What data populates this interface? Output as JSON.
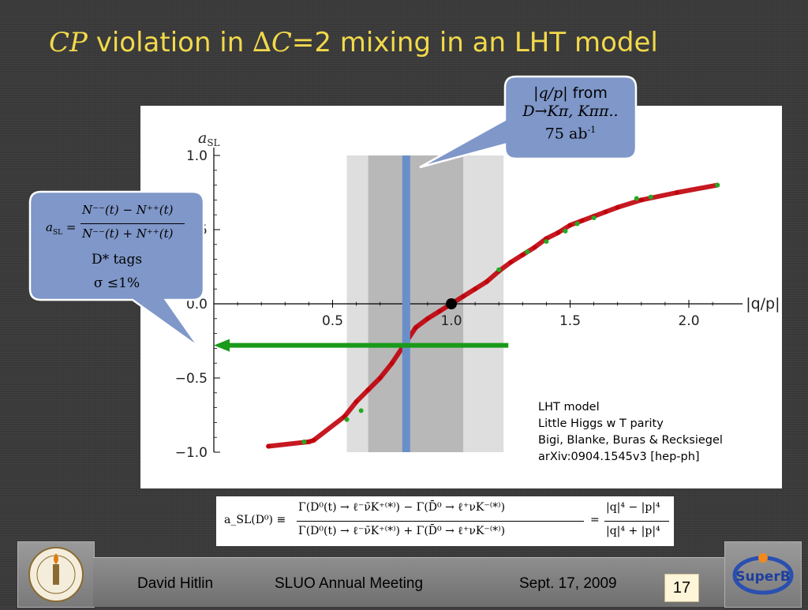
{
  "slide": {
    "title_cp": "CP",
    "title_mid": " violation in ",
    "title_delta": "∆C",
    "title_end": "=2 mixing in an LHT model",
    "page_number": "17"
  },
  "callouts": {
    "qp": {
      "line1_var": "|q/p|",
      "line1_text": " from",
      "line2": "D→Kπ, Kππ..",
      "line3_base": "75 ab",
      "line3_sup": "-1"
    },
    "asl": {
      "lhs": "a",
      "lhs_sub": "SL",
      "lhs_eq": " =",
      "numerator": "N⁻⁻(t) − N⁺⁺(t)",
      "denominator": "N⁻⁻(t) + N⁺⁺(t)",
      "tags": "D* tags",
      "sigma": "σ ≤1%"
    }
  },
  "credit": {
    "line1": "LHT model",
    "line2": "Little Higgs w T parity",
    "line3": "Bigi, Blanke, Buras & Recksiegel",
    "line4": "arXiv:0904.1545v3 [hep-ph]"
  },
  "formula": {
    "lhs": "a_SL(D⁰) ≡",
    "numerator": "Γ(D⁰(t) → ℓ⁻ν̄K⁺⁽*⁾) − Γ(D̄⁰ → ℓ⁺νK⁻⁽*⁾)",
    "denominator": "Γ(D⁰(t) → ℓ⁻ν̄K⁺⁽*⁾) + Γ(D̄⁰ → ℓ⁺νK⁻⁽*⁾)",
    "eq": "=",
    "rnumerator": "|q|⁴ − |p|⁴",
    "rdenominator": "|q|⁴ + |p|⁴"
  },
  "footer": {
    "author": "David Hitlin",
    "meeting": "SLUO Annual Meeting",
    "date": "Sept. 17, 2009"
  },
  "logos": {
    "left": "caltech-seal-icon",
    "right": "superb-logo-icon",
    "right_text": "SuperB"
  },
  "chart_data": {
    "type": "scatter",
    "xlabel": "|q/p|",
    "ylabel": "a_SL",
    "xlim": [
      0.0,
      2.2
    ],
    "ylim": [
      -1.0,
      1.0
    ],
    "xticks": [
      "0.5",
      "1.0",
      "1.5",
      "2.0"
    ],
    "yticks": [
      "1.0",
      "0.5",
      "0.0",
      "−0.5",
      "−1.0"
    ],
    "grid": false,
    "series": [
      {
        "color": "#c0000a",
        "x": [
          0.23,
          0.4,
          0.42,
          0.55,
          0.6,
          0.65,
          0.7,
          0.75,
          0.8,
          0.85,
          0.9,
          0.95,
          1.0,
          1.05,
          1.1,
          1.15,
          1.2,
          1.25,
          1.3,
          1.35,
          1.4,
          1.45,
          1.5,
          1.55,
          1.6,
          1.65,
          1.7,
          1.8,
          1.95,
          2.12
        ],
        "y": [
          -0.96,
          -0.93,
          -0.92,
          -0.76,
          -0.66,
          -0.58,
          -0.5,
          -0.4,
          -0.28,
          -0.16,
          -0.1,
          -0.05,
          0.0,
          0.05,
          0.1,
          0.15,
          0.22,
          0.28,
          0.33,
          0.38,
          0.44,
          0.48,
          0.53,
          0.56,
          0.59,
          0.62,
          0.65,
          0.7,
          0.75,
          0.8
        ]
      },
      {
        "color": "#22aa22",
        "x": [
          0.38,
          0.56,
          0.62,
          1.2,
          1.32,
          1.4,
          1.48,
          1.53,
          1.6,
          1.78,
          1.84,
          2.12
        ],
        "y": [
          -0.93,
          -0.78,
          -0.72,
          0.23,
          0.35,
          0.42,
          0.49,
          0.54,
          0.58,
          0.71,
          0.72,
          0.8
        ]
      }
    ],
    "bands": [
      {
        "x": [
          0.56,
          1.22
        ],
        "shade": "light"
      },
      {
        "x": [
          0.65,
          1.05
        ],
        "shade": "dark"
      }
    ],
    "vline": {
      "x": 0.81,
      "color": "#6a8fc8"
    },
    "hline_arrow": {
      "y": -0.28,
      "x_from": 1.24,
      "x_to": 0.0,
      "color": "#1a9a1a"
    },
    "marker": {
      "x": 1.0,
      "y": 0.0
    }
  }
}
